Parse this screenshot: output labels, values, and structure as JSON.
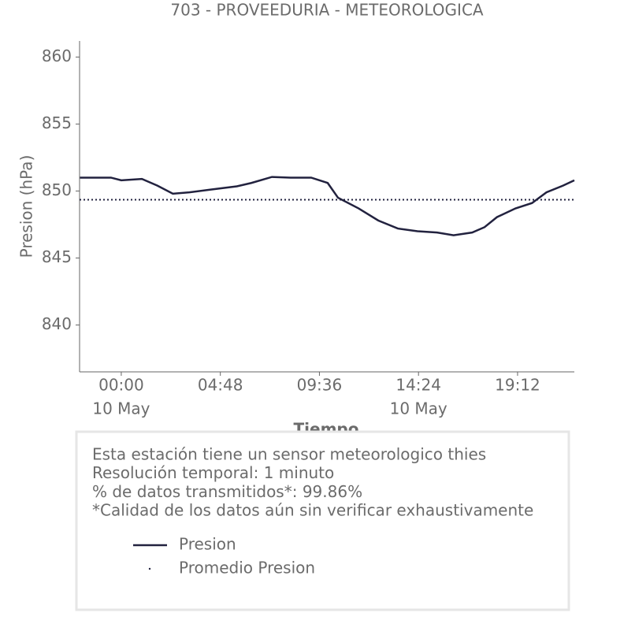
{
  "chart_data": {
    "type": "line",
    "title": "703 - PROVEEDURIA - METEOROLOGICA",
    "xlabel": "Tiempo",
    "ylabel": "Presion (hPa)",
    "x": [
      -2,
      -0.5,
      0,
      1,
      1.75,
      2.5,
      3.3,
      4.3,
      5.6,
      6.3,
      7.3,
      8.2,
      9.2,
      10.0,
      10.5,
      11.5,
      12.45,
      13.4,
      14.35,
      15.3,
      16.1,
      17.0,
      17.6,
      18.2,
      19.1,
      19.9,
      20.6,
      21.4,
      21.95
    ],
    "series": [
      {
        "name": "Presion",
        "color": "#22223f",
        "values": [
          851.0,
          851.0,
          850.8,
          850.9,
          850.4,
          849.8,
          849.9,
          850.1,
          850.35,
          850.6,
          851.05,
          851.0,
          851.0,
          850.6,
          849.5,
          848.7,
          847.8,
          847.2,
          847.0,
          846.9,
          846.7,
          846.9,
          847.3,
          848.05,
          848.7,
          849.1,
          849.9,
          850.4,
          850.8
        ]
      }
    ],
    "mean": {
      "name": "Promedio Presion",
      "color": "#22223f",
      "value": 849.35
    },
    "xlim": [
      -2.02,
      21.95
    ],
    "ylim": [
      836.5,
      861.2
    ],
    "xticks": [
      {
        "value": 0,
        "label": "00:00",
        "date": "10 May"
      },
      {
        "value": 4.8,
        "label": "04:48"
      },
      {
        "value": 9.6,
        "label": "09:36"
      },
      {
        "value": 14.4,
        "label": "14:24",
        "date": "10 May"
      },
      {
        "value": 19.2,
        "label": "19:12"
      }
    ],
    "yticks": [
      840,
      845,
      850,
      855,
      860
    ],
    "info": [
      "Esta estación tiene un sensor meteorologico thies",
      "Resolución temporal: 1 minuto",
      "% de datos transmitidos*: 99.86%",
      "*Calidad de los datos aún sin verificar exhaustivamente"
    ]
  }
}
